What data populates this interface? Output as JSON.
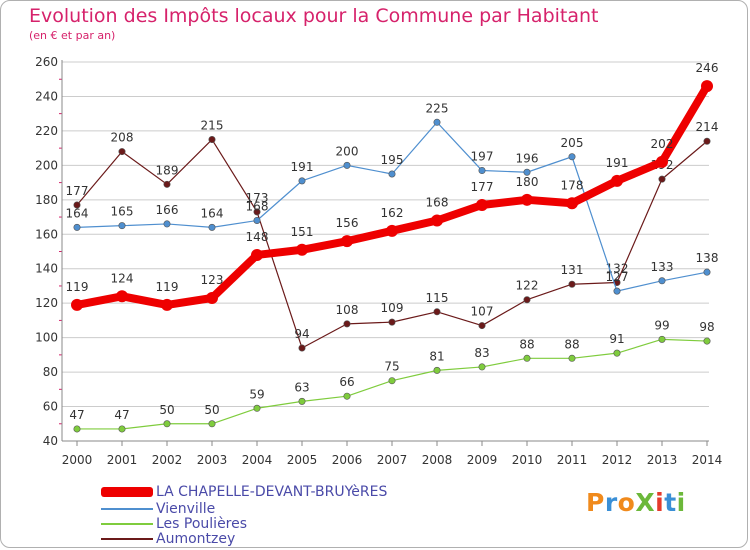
{
  "header": {
    "title": "Evolution des Impôts locaux pour la Commune par Habitant",
    "subtitle": "(en € et par an)"
  },
  "brand": {
    "text": "ProXiti",
    "colors": [
      "#f08a1c",
      "#3a8fd6",
      "#f08a1c",
      "#6cb83a",
      "#e53a2c",
      "#3a8fd6",
      "#6cb83a"
    ]
  },
  "colors": {
    "title": "#d6226b",
    "grid": "#cccccc",
    "axis": "#888888"
  },
  "chart_data": {
    "type": "line",
    "title": "Evolution des Impôts locaux pour la Commune par Habitant",
    "subtitle": "(en € et par an)",
    "xlabel": "",
    "ylabel": "",
    "x": [
      2000,
      2001,
      2002,
      2003,
      2004,
      2005,
      2006,
      2007,
      2008,
      2009,
      2010,
      2011,
      2012,
      2013,
      2014
    ],
    "ylim": [
      40,
      260
    ],
    "yticks": [
      40,
      60,
      80,
      100,
      120,
      140,
      160,
      180,
      200,
      220,
      240,
      260
    ],
    "grid": "horizontal",
    "legend_position": "bottom-left",
    "series": [
      {
        "name": "Aumontzey",
        "color": "#6b1a1a",
        "values": [
          177,
          208,
          189,
          215,
          173,
          94,
          108,
          109,
          115,
          107,
          122,
          131,
          132,
          192,
          214
        ]
      },
      {
        "name": "Vienville",
        "color": "#4f8fcf",
        "values": [
          164,
          165,
          166,
          164,
          168,
          191,
          200,
          195,
          225,
          197,
          196,
          205,
          127,
          133,
          138
        ]
      },
      {
        "name": "Les Poulières",
        "color": "#7fcc3d",
        "values": [
          47,
          47,
          50,
          50,
          59,
          63,
          66,
          75,
          81,
          83,
          88,
          88,
          91,
          99,
          98
        ]
      },
      {
        "name": "LA CHAPELLE-DEVANT-BRUYèRES",
        "color": "#ee0000",
        "values": [
          119,
          124,
          119,
          123,
          148,
          151,
          156,
          162,
          168,
          177,
          180,
          178,
          191,
          202,
          246
        ]
      }
    ],
    "legend_order": [
      "LA CHAPELLE-DEVANT-BRUYèRES",
      "Vienville",
      "Les Poulières",
      "Aumontzey"
    ]
  }
}
